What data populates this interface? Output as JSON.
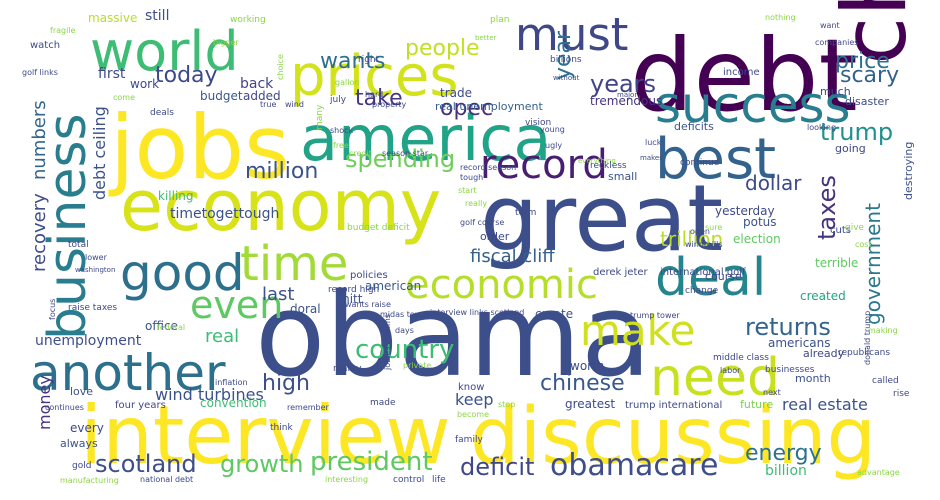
{
  "words": [
    {
      "text": "obama",
      "color": "#3c4f8a"
    },
    {
      "text": "debt",
      "color": "#440154"
    },
    {
      "text": "jobs",
      "color": "#fde725"
    },
    {
      "text": "interview",
      "color": "#fde725"
    },
    {
      "text": "discussing",
      "color": "#fde725"
    },
    {
      "text": "china",
      "color": "#440154"
    },
    {
      "text": "great",
      "color": "#3c4f8a"
    },
    {
      "text": "economy",
      "color": "#d7e219"
    },
    {
      "text": "america",
      "color": "#20a386"
    },
    {
      "text": "success",
      "color": "#287d8e"
    },
    {
      "text": "prices",
      "color": "#d2e21b"
    },
    {
      "text": "world",
      "color": "#3dbc74"
    },
    {
      "text": "business",
      "color": "#287d8e"
    },
    {
      "text": "best",
      "color": "#33638d"
    },
    {
      "text": "another",
      "color": "#2d708e"
    },
    {
      "text": "good",
      "color": "#2d708e"
    },
    {
      "text": "must",
      "color": "#3f4788"
    },
    {
      "text": "deal",
      "color": "#25858e"
    },
    {
      "text": "need",
      "color": "#c8e020"
    },
    {
      "text": "time",
      "color": "#a2da37"
    },
    {
      "text": "record",
      "color": "#481f70"
    },
    {
      "text": "economic",
      "color": "#b5de2b"
    },
    {
      "text": "make",
      "color": "#d0e11c"
    },
    {
      "text": "even",
      "color": "#5ec962"
    },
    {
      "text": "scotland",
      "color": "#3d4e8a"
    },
    {
      "text": "obamacare",
      "color": "#3d4e8a"
    },
    {
      "text": "country",
      "color": "#3dbc74"
    },
    {
      "text": "spending",
      "color": "#6ece58"
    },
    {
      "text": "president",
      "color": "#5ec962"
    },
    {
      "text": "growth",
      "color": "#5ec962"
    },
    {
      "text": "deficit",
      "color": "#3f4788"
    },
    {
      "text": "government",
      "color": "#2a788e"
    },
    {
      "text": "returns",
      "color": "#32648e"
    },
    {
      "text": "chinese",
      "color": "#38598c"
    },
    {
      "text": "trump",
      "color": "#21918c"
    },
    {
      "text": "taxes",
      "color": "#46337e"
    },
    {
      "text": "high",
      "color": "#3d4e8a"
    },
    {
      "text": "energy",
      "color": "#2c728e"
    },
    {
      "text": "scary",
      "color": "#33638d"
    },
    {
      "text": "price",
      "color": "#2c728e"
    },
    {
      "text": "year",
      "color": "#2e6e8e"
    },
    {
      "text": "years",
      "color": "#414487"
    },
    {
      "text": "today",
      "color": "#3e4989"
    },
    {
      "text": "wants",
      "color": "#2e6e8e"
    },
    {
      "text": "people",
      "color": "#c2df23"
    },
    {
      "text": "opec",
      "color": "#46307e"
    },
    {
      "text": "take",
      "color": "#453882"
    },
    {
      "text": "million",
      "color": "#3b528b"
    },
    {
      "text": "dollar",
      "color": "#3e4989"
    },
    {
      "text": "trillion",
      "color": "#b8de29"
    },
    {
      "text": "recovery",
      "color": "#3d4e8a"
    },
    {
      "text": "numbers",
      "color": "#32648e"
    },
    {
      "text": "fiscal cliff",
      "color": "#35608d"
    },
    {
      "text": "last",
      "color": "#3b528b"
    },
    {
      "text": "real",
      "color": "#3dbc74"
    },
    {
      "text": "money",
      "color": "#46337e"
    },
    {
      "text": "wind turbines",
      "color": "#3b528b"
    },
    {
      "text": "keep",
      "color": "#3b528b"
    },
    {
      "text": "debt ceiling",
      "color": "#3b528b"
    },
    {
      "text": "real estate",
      "color": "#3b528b"
    },
    {
      "text": "first",
      "color": "#3e4989"
    },
    {
      "text": "back",
      "color": "#414487"
    },
    {
      "text": "still",
      "color": "#3d4e8a"
    },
    {
      "text": "massive",
      "color": "#b5de2b"
    },
    {
      "text": "timetogettough",
      "color": "#3b528b"
    },
    {
      "text": "added",
      "color": "#3f4788"
    },
    {
      "text": "budget",
      "color": "#38598c"
    },
    {
      "text": "killing",
      "color": "#3dbc74"
    },
    {
      "text": "work",
      "color": "#3e4989"
    },
    {
      "text": "trade",
      "color": "#3e4989"
    },
    {
      "text": "real unemployment",
      "color": "#35608d"
    },
    {
      "text": "tremendous",
      "color": "#46337e"
    },
    {
      "text": "deficits",
      "color": "#3b528b"
    },
    {
      "text": "going",
      "color": "#3e4989"
    },
    {
      "text": "small",
      "color": "#3b528b"
    },
    {
      "text": "potus",
      "color": "#3b528b"
    },
    {
      "text": "yesterday",
      "color": "#3e4989"
    },
    {
      "text": "destroying",
      "color": "#3b528b"
    },
    {
      "text": "created",
      "color": "#20a386"
    },
    {
      "text": "election",
      "color": "#5ec962"
    },
    {
      "text": "terrible",
      "color": "#5ec962"
    },
    {
      "text": "unemployment",
      "color": "#3d4e8a"
    },
    {
      "text": "office",
      "color": "#3b528b"
    },
    {
      "text": "mitt",
      "color": "#3b528b"
    },
    {
      "text": "doral",
      "color": "#3b528b"
    },
    {
      "text": "american",
      "color": "#38598c"
    },
    {
      "text": "americans",
      "color": "#3b528b"
    },
    {
      "text": "already",
      "color": "#3e4989"
    },
    {
      "text": "month",
      "color": "#3b528b"
    },
    {
      "text": "future",
      "color": "#7ad151"
    },
    {
      "text": "billion",
      "color": "#3dbc74"
    },
    {
      "text": "greatest",
      "color": "#3e4989"
    },
    {
      "text": "trump international",
      "color": "#3e4989"
    },
    {
      "text": "convention",
      "color": "#3dbc74"
    },
    {
      "text": "every",
      "color": "#3e4989"
    },
    {
      "text": "love",
      "color": "#3b528b"
    },
    {
      "text": "four years",
      "color": "#3e4989"
    },
    {
      "text": "always",
      "color": "#3b528b"
    },
    {
      "text": "create",
      "color": "#3b528b"
    },
    {
      "text": "worth",
      "color": "#3e4989"
    },
    {
      "text": "know",
      "color": "#3e4989"
    },
    {
      "text": "order",
      "color": "#3e4989"
    },
    {
      "text": "course",
      "color": "#3e4989"
    },
    {
      "text": "cuts",
      "color": "#3e4989"
    },
    {
      "text": "income",
      "color": "#3e4989"
    },
    {
      "text": "much",
      "color": "#3e4989"
    },
    {
      "text": "disaster",
      "color": "#3e4989"
    },
    {
      "text": "plan",
      "color": "#8bd646"
    },
    {
      "text": "working",
      "color": "#8bd646"
    },
    {
      "text": "watch",
      "color": "#3e4989"
    },
    {
      "text": "billions",
      "color": "#3e4989"
    },
    {
      "text": "right",
      "color": "#3e4989"
    },
    {
      "text": "nothing",
      "color": "#8bd646"
    },
    {
      "text": "want",
      "color": "#3e4989"
    },
    {
      "text": "companies",
      "color": "#3e4989"
    },
    {
      "text": "fragile",
      "color": "#8bd646"
    },
    {
      "text": "golf links",
      "color": "#3e4989"
    },
    {
      "text": "bigger",
      "color": "#8bd646"
    },
    {
      "text": "choice",
      "color": "#8bd646"
    },
    {
      "text": "gallon",
      "color": "#8bd646"
    },
    {
      "text": "july",
      "color": "#3e4989"
    },
    {
      "text": "hard",
      "color": "#3e4989"
    },
    {
      "text": "property",
      "color": "#3e4989"
    },
    {
      "text": "deals",
      "color": "#3e4989"
    },
    {
      "text": "true",
      "color": "#3e4989"
    },
    {
      "text": "wind",
      "color": "#3e4989"
    },
    {
      "text": "come",
      "color": "#8bd646"
    },
    {
      "text": "shock",
      "color": "#3e4989"
    },
    {
      "text": "free",
      "color": "#8bd646"
    },
    {
      "text": "many",
      "color": "#8bd646"
    },
    {
      "text": "vision",
      "color": "#3e4989"
    },
    {
      "text": "young",
      "color": "#3e4989"
    },
    {
      "text": "ugly",
      "color": "#3e4989"
    },
    {
      "text": "credit",
      "color": "#8bd646"
    },
    {
      "text": "season star",
      "color": "#3e4989"
    },
    {
      "text": "record season",
      "color": "#3e4989"
    },
    {
      "text": "tough",
      "color": "#3e4989"
    },
    {
      "text": "everything",
      "color": "#8bd646"
    },
    {
      "text": "reckless",
      "color": "#3e4989"
    },
    {
      "text": "makes",
      "color": "#3e4989"
    },
    {
      "text": "luck",
      "color": "#3e4989"
    },
    {
      "text": "continue",
      "color": "#3e4989"
    },
    {
      "text": "start",
      "color": "#8bd646"
    },
    {
      "text": "really",
      "color": "#8bd646"
    },
    {
      "text": "budget deficit",
      "color": "#8bd646"
    },
    {
      "text": "golf course",
      "color": "#3e4989"
    },
    {
      "text": "derek jeter",
      "color": "#3e4989"
    },
    {
      "text": "international golf",
      "color": "#3e4989"
    },
    {
      "text": "change",
      "color": "#3e4989"
    },
    {
      "text": "term",
      "color": "#3e4989"
    },
    {
      "text": "open",
      "color": "#3e4989"
    },
    {
      "text": "sure",
      "color": "#8bd646"
    },
    {
      "text": "windmills",
      "color": "#3e4989"
    },
    {
      "text": "give",
      "color": "#8bd646"
    },
    {
      "text": "cost",
      "color": "#8bd646"
    },
    {
      "text": "lower",
      "color": "#3e4989"
    },
    {
      "text": "washington",
      "color": "#3e4989"
    },
    {
      "text": "focus",
      "color": "#3e4989"
    },
    {
      "text": "raise taxes",
      "color": "#3e4989"
    },
    {
      "text": "total",
      "color": "#3e4989"
    },
    {
      "text": "policies",
      "color": "#3e4989"
    },
    {
      "text": "record high",
      "color": "#3e4989"
    },
    {
      "text": "wants raise",
      "color": "#3e4989"
    },
    {
      "text": "midas touch",
      "color": "#3e4989"
    },
    {
      "text": "interview links scotland",
      "color": "#3e4989"
    },
    {
      "text": "jobless claims",
      "color": "#3e4989"
    },
    {
      "text": "days",
      "color": "#3e4989"
    },
    {
      "text": "trump tower",
      "color": "#3e4989"
    },
    {
      "text": "making",
      "color": "#8bd646"
    },
    {
      "text": "donald trump",
      "color": "#3e4989"
    },
    {
      "text": "republicans",
      "color": "#3e4989"
    },
    {
      "text": "middle class",
      "color": "#3e4989"
    },
    {
      "text": "labor",
      "color": "#3e4989"
    },
    {
      "text": "federal",
      "color": "#8bd646"
    },
    {
      "text": "inflation",
      "color": "#3e4989"
    },
    {
      "text": "reality",
      "color": "#3e4989"
    },
    {
      "text": "private",
      "color": "#8bd646"
    },
    {
      "text": "made",
      "color": "#3e4989"
    },
    {
      "text": "stop",
      "color": "#8bd646"
    },
    {
      "text": "businesses",
      "color": "#3e4989"
    },
    {
      "text": "next",
      "color": "#3e4989"
    },
    {
      "text": "called",
      "color": "#3e4989"
    },
    {
      "text": "rise",
      "color": "#3e4989"
    },
    {
      "text": "continues",
      "color": "#3e4989"
    },
    {
      "text": "remember",
      "color": "#3e4989"
    },
    {
      "text": "become",
      "color": "#8bd646"
    },
    {
      "text": "think",
      "color": "#3e4989"
    },
    {
      "text": "family",
      "color": "#3e4989"
    },
    {
      "text": "gold",
      "color": "#3e4989"
    },
    {
      "text": "manufacturing",
      "color": "#8bd646"
    },
    {
      "text": "national debt",
      "color": "#3e4989"
    },
    {
      "text": "interesting",
      "color": "#8bd646"
    },
    {
      "text": "control",
      "color": "#3e4989"
    },
    {
      "text": "life",
      "color": "#3e4989"
    },
    {
      "text": "advantage",
      "color": "#8bd646"
    },
    {
      "text": "better",
      "color": "#8bd646"
    },
    {
      "text": "without",
      "color": "#3e4989"
    },
    {
      "text": "major",
      "color": "#3e4989"
    },
    {
      "text": "looking",
      "color": "#3e4989"
    }
  ]
}
